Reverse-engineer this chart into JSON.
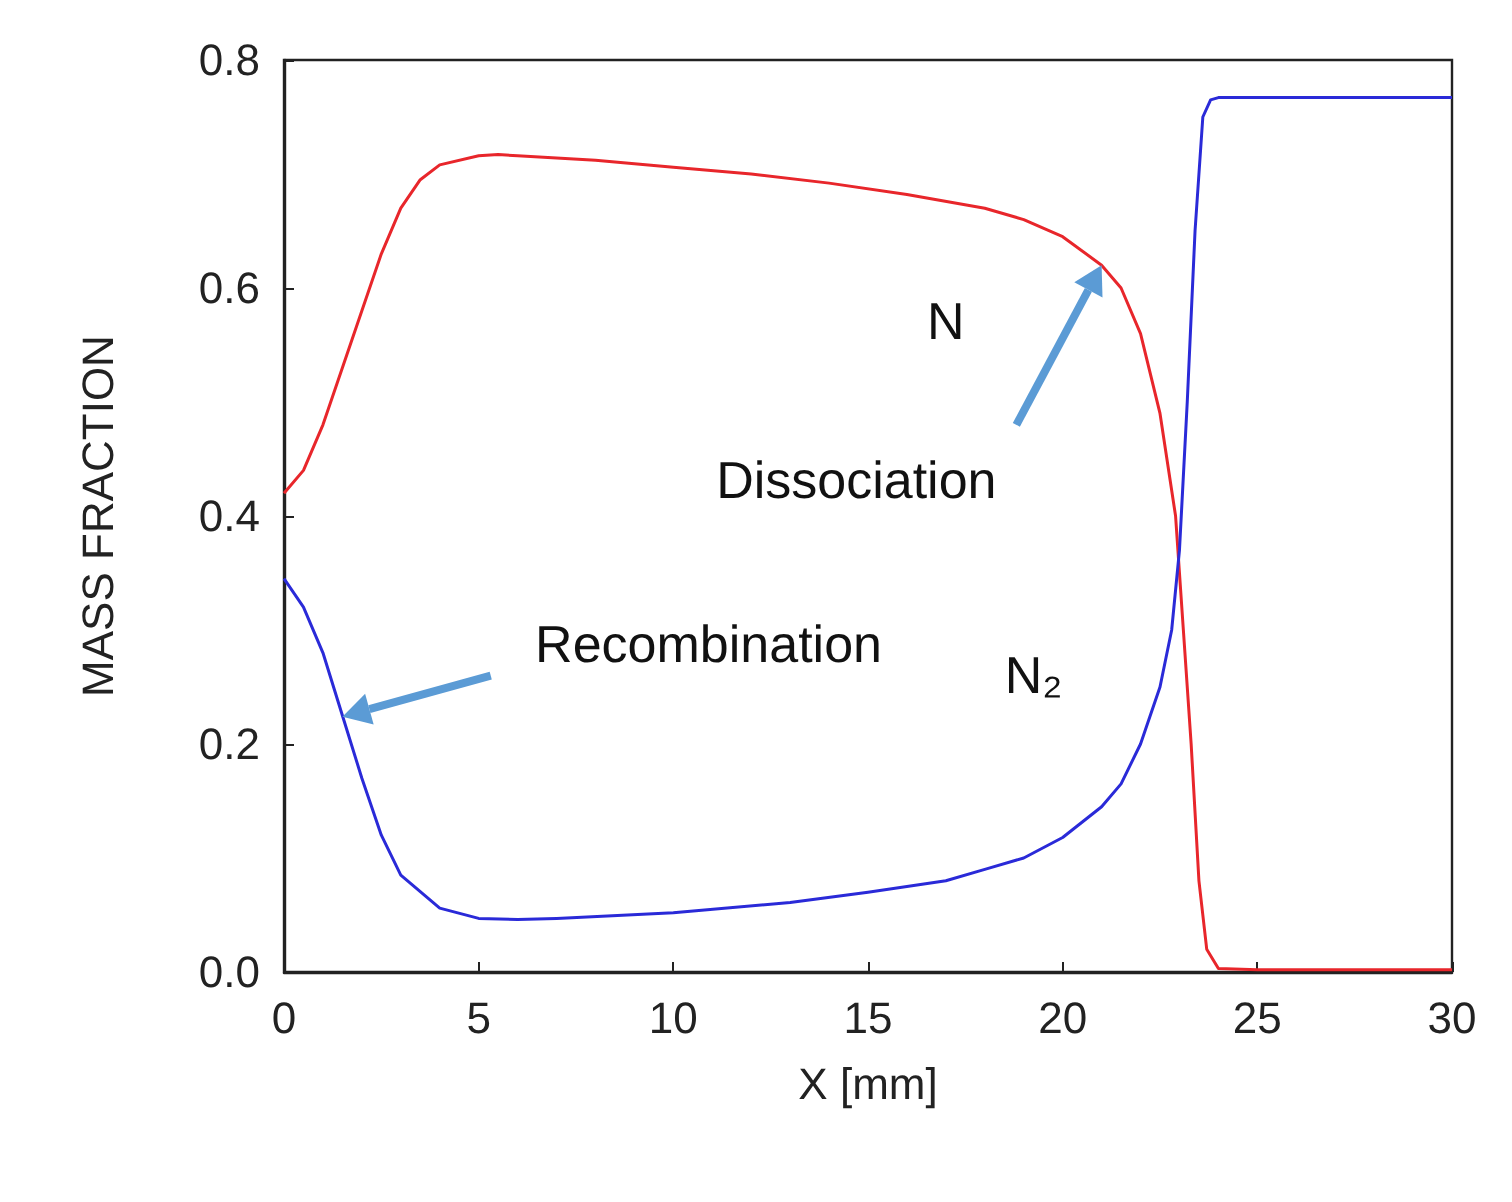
{
  "chart_data": {
    "type": "line",
    "xlabel": "X [mm]",
    "ylabel": "MASS FRACTION",
    "xlim": [
      0,
      30
    ],
    "ylim": [
      0,
      0.8
    ],
    "xticks": [
      0,
      5,
      10,
      15,
      20,
      25,
      30
    ],
    "yticks": [
      {
        "value": 0,
        "label": "0.0"
      },
      0.2,
      0.4,
      0.6,
      0.8
    ],
    "grid": false,
    "legend": false,
    "marker": "none",
    "line_style": "solid",
    "series": [
      {
        "name": "N",
        "color": "#e8262b",
        "x": [
          0,
          0.5,
          1,
          1.5,
          2,
          2.5,
          3,
          3.5,
          4,
          5,
          5.5,
          6,
          8,
          10,
          12,
          14,
          16,
          18,
          19,
          20,
          21,
          21.5,
          22,
          22.5,
          22.9,
          23.1,
          23.3,
          23.5,
          23.7,
          24,
          25,
          30
        ],
        "values": [
          0.42,
          0.44,
          0.48,
          0.53,
          0.58,
          0.63,
          0.67,
          0.695,
          0.708,
          0.716,
          0.717,
          0.716,
          0.712,
          0.706,
          0.7,
          0.692,
          0.682,
          0.67,
          0.66,
          0.645,
          0.62,
          0.6,
          0.56,
          0.49,
          0.4,
          0.3,
          0.2,
          0.08,
          0.02,
          0.003,
          0.002,
          0.002
        ]
      },
      {
        "name": "N₂",
        "color": "#2a2ad8",
        "x": [
          0,
          0.5,
          1,
          1.5,
          2,
          2.5,
          3,
          4,
          5,
          6,
          7,
          10,
          13,
          15,
          17,
          18,
          19,
          20,
          21,
          21.5,
          22,
          22.5,
          22.8,
          23,
          23.2,
          23.4,
          23.6,
          23.8,
          24,
          25,
          30
        ],
        "values": [
          0.345,
          0.32,
          0.28,
          0.225,
          0.17,
          0.12,
          0.085,
          0.056,
          0.047,
          0.046,
          0.047,
          0.052,
          0.061,
          0.07,
          0.08,
          0.09,
          0.1,
          0.118,
          0.145,
          0.165,
          0.2,
          0.25,
          0.3,
          0.37,
          0.5,
          0.65,
          0.75,
          0.765,
          0.767,
          0.767,
          0.767
        ]
      }
    ],
    "annotations": [
      "Dissociation",
      "Recombination"
    ]
  }
}
